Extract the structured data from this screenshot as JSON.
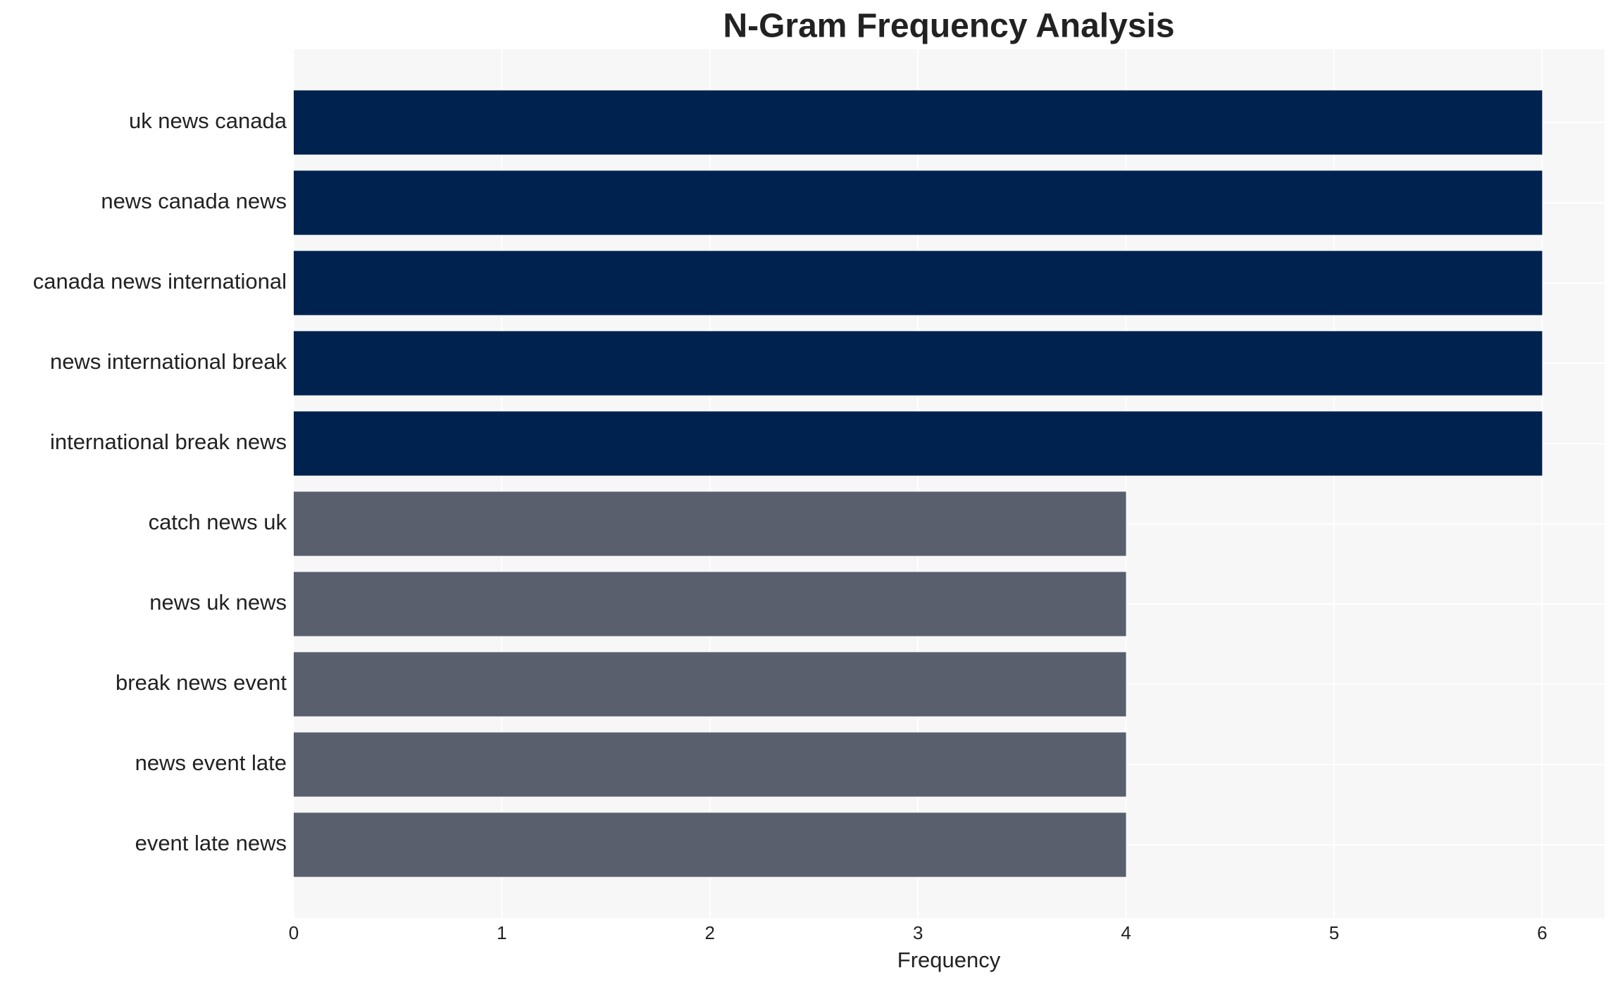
{
  "chart_data": {
    "type": "bar",
    "orientation": "horizontal",
    "title": "N-Gram Frequency Analysis",
    "xlabel": "Frequency",
    "categories": [
      "uk news canada",
      "news canada news",
      "canada news international",
      "news international break",
      "international break news",
      "catch news uk",
      "news uk news",
      "break news event",
      "news event late",
      "event late news"
    ],
    "values": [
      6,
      6,
      6,
      6,
      6,
      4,
      4,
      4,
      4,
      4
    ],
    "colors": [
      "#00224e",
      "#00224e",
      "#00224e",
      "#00224e",
      "#00224e",
      "#5a5f6e",
      "#5a5f6e",
      "#5a5f6e",
      "#5a5f6e",
      "#5a5f6e"
    ],
    "xlim": [
      0,
      6.3
    ],
    "xticks": [
      0,
      1,
      2,
      3,
      4,
      5,
      6
    ],
    "grid": true
  }
}
